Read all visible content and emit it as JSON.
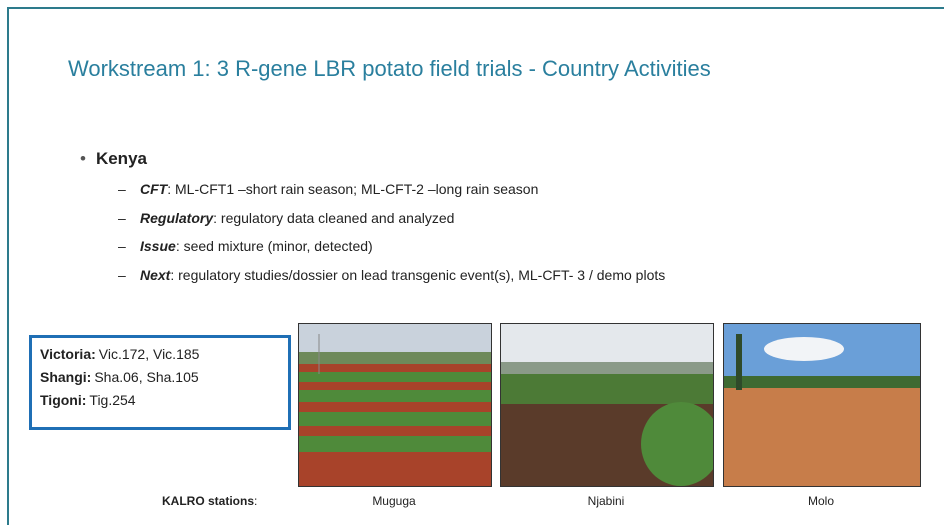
{
  "title": "Workstream 1: 3 R-gene LBR potato field trials - Country  Activities",
  "bullet": {
    "heading": "Kenya",
    "items": [
      {
        "label": "CFT",
        "text": ": ML-CFT1 –short rain season; ML-CFT-2 –long rain season"
      },
      {
        "label": "Regulatory",
        "text": ": regulatory data cleaned and analyzed"
      },
      {
        "label": "Issue",
        "text": ": seed mixture (minor, detected)"
      },
      {
        "label": "Next",
        "text": ": regulatory studies/dossier on lead transgenic event(s), ML-CFT- 3 / demo plots"
      }
    ]
  },
  "varieties": [
    {
      "name": "Victoria:",
      "codes": "Vic.172, Vic.185"
    },
    {
      "name": "Shangi:",
      "codes": "Sha.06, Sha.105"
    },
    {
      "name": "Tigoni:",
      "codes": "Tig.254"
    }
  ],
  "stations": {
    "label": "KALRO stations",
    "suffix": ":",
    "names": [
      "Muguga",
      "Njabini",
      "Molo"
    ]
  }
}
